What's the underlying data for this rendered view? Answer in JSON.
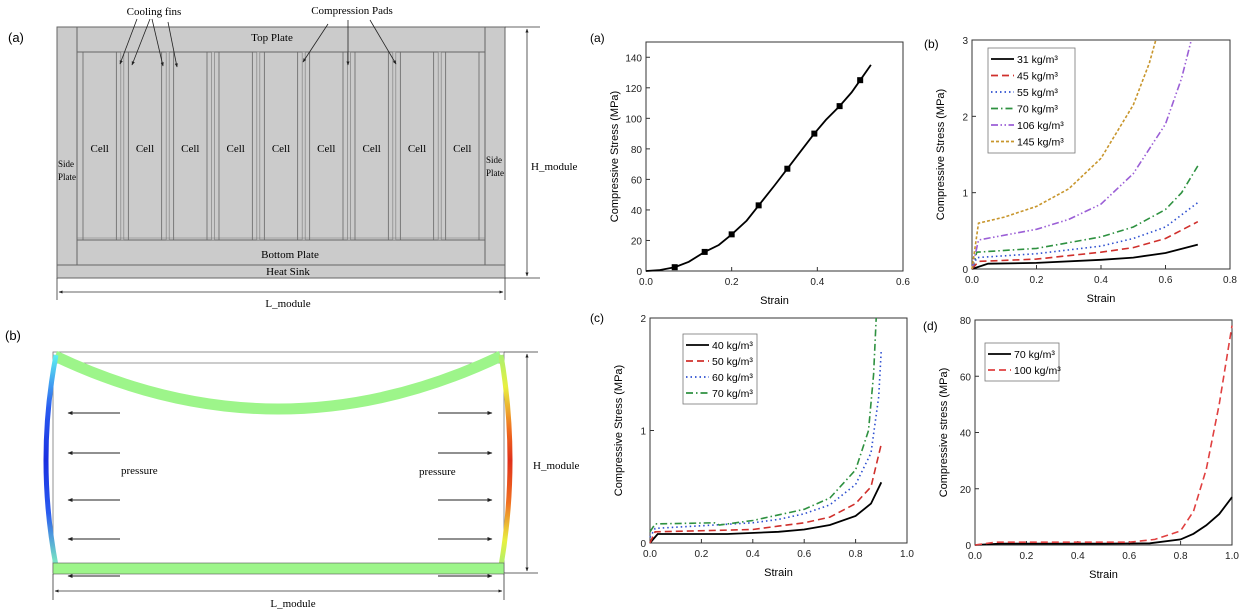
{
  "panel_labels": {
    "diagram_a": "(a)",
    "diagram_b": "(b)"
  },
  "diagram_a": {
    "cooling_fins": "Cooling fins",
    "compression_pads": "Compression Pads",
    "top_plate": "Top Plate",
    "bottom_plate": "Bottom Plate",
    "heat_sink": "Heat Sink",
    "side_plate": [
      "Side",
      "Plate"
    ],
    "cell": "Cell",
    "h_module": "H_module",
    "l_module": "L_module",
    "fill_color": "#cbcbcb"
  },
  "diagram_b": {
    "pressure_left": "pressure",
    "pressure_right": "pressure",
    "h_module": "H_module",
    "l_module": "L_module",
    "plate_color": "#9df58a",
    "left_plate_colors": [
      "#5ff0f0",
      "#1a2fe0",
      "#5ff0f0"
    ],
    "right_plate_colors": [
      "#e8f040",
      "#e0301a",
      "#e8f040"
    ]
  },
  "chart_data": [
    {
      "panel": "(a)",
      "type": "line",
      "xlabel": "Strain",
      "ylabel": "Compressive Stress (MPa)",
      "xlim": [
        0,
        0.6
      ],
      "ylim": [
        0,
        150
      ],
      "xticks": [
        "0.0",
        "0.2",
        "0.4",
        "0.6"
      ],
      "xtick_values": [
        0,
        0.2,
        0.4,
        0.6
      ],
      "yticks": [
        "0",
        "20",
        "40",
        "60",
        "80",
        "100",
        "120",
        "140"
      ],
      "ytick_values": [
        0,
        20,
        40,
        60,
        80,
        100,
        120,
        140
      ],
      "grid": false,
      "legend": null,
      "series": [
        {
          "color": "#000000",
          "style": "solid",
          "markers": true,
          "x": [
            0,
            0.03,
            0.067,
            0.1,
            0.137,
            0.17,
            0.2,
            0.235,
            0.263,
            0.3,
            0.33,
            0.36,
            0.393,
            0.42,
            0.452,
            0.48,
            0.5,
            0.525
          ],
          "y": [
            0,
            0.5,
            2.5,
            6,
            12.5,
            17,
            24,
            33,
            43,
            56,
            67,
            78,
            90,
            99,
            108,
            117,
            125,
            135
          ],
          "marker_x": [
            0.067,
            0.137,
            0.2,
            0.263,
            0.33,
            0.393,
            0.452,
            0.5
          ],
          "marker_y": [
            2.5,
            12.5,
            24,
            43,
            67,
            90,
            108,
            125
          ]
        }
      ]
    },
    {
      "panel": "(b)",
      "type": "line",
      "xlabel": "Strain",
      "ylabel": "Compressive Stress (MPa)",
      "xlim": [
        0,
        0.8
      ],
      "ylim": [
        0,
        3
      ],
      "xticks": [
        "0.0",
        "0.2",
        "0.4",
        "0.6",
        "0.8"
      ],
      "xtick_values": [
        0,
        0.2,
        0.4,
        0.6,
        0.8
      ],
      "yticks": [
        "0",
        "1",
        "2",
        "3"
      ],
      "ytick_values": [
        0,
        1,
        2,
        3
      ],
      "grid": false,
      "legend": "top-left",
      "series": [
        {
          "name": "31 kg/m³",
          "color": "#000000",
          "style": "solid",
          "x": [
            0,
            0.05,
            0.2,
            0.4,
            0.5,
            0.6,
            0.7
          ],
          "y": [
            0,
            0.07,
            0.08,
            0.12,
            0.15,
            0.21,
            0.32
          ]
        },
        {
          "name": "45 kg/m³",
          "color": "#d0302c",
          "style": "dash",
          "x": [
            0,
            0.02,
            0.2,
            0.4,
            0.5,
            0.6,
            0.7
          ],
          "y": [
            0,
            0.1,
            0.13,
            0.22,
            0.28,
            0.4,
            0.62
          ]
        },
        {
          "name": "55 kg/m³",
          "color": "#2d4fd0",
          "style": "dot",
          "x": [
            0,
            0.015,
            0.2,
            0.4,
            0.5,
            0.6,
            0.7
          ],
          "y": [
            0,
            0.15,
            0.2,
            0.3,
            0.4,
            0.55,
            0.87
          ]
        },
        {
          "name": "70 kg/m³",
          "color": "#2e9140",
          "style": "dashdot",
          "x": [
            0,
            0.015,
            0.2,
            0.4,
            0.5,
            0.6,
            0.65,
            0.7
          ],
          "y": [
            0,
            0.22,
            0.27,
            0.42,
            0.55,
            0.78,
            1.0,
            1.35
          ]
        },
        {
          "name": "106 kg/m³",
          "color": "#9b5fd6",
          "style": "dashdotdot",
          "x": [
            0,
            0.02,
            0.2,
            0.3,
            0.4,
            0.5,
            0.6,
            0.65,
            0.68
          ],
          "y": [
            0,
            0.38,
            0.52,
            0.65,
            0.85,
            1.25,
            1.9,
            2.5,
            3.0
          ]
        },
        {
          "name": "145 kg/m³",
          "color": "#c8962d",
          "style": "shortdash",
          "x": [
            0,
            0.02,
            0.1,
            0.2,
            0.3,
            0.4,
            0.5,
            0.55,
            0.57
          ],
          "y": [
            0,
            0.6,
            0.68,
            0.82,
            1.05,
            1.45,
            2.15,
            2.7,
            3.0
          ]
        }
      ]
    },
    {
      "panel": "(c)",
      "type": "line",
      "xlabel": "Strain",
      "ylabel": "Compressive Stress (MPa)",
      "xlim": [
        0,
        1.0
      ],
      "ylim": [
        0,
        2
      ],
      "xticks": [
        "0.0",
        "0.2",
        "0.4",
        "0.6",
        "0.8",
        "1.0"
      ],
      "xtick_values": [
        0,
        0.2,
        0.4,
        0.6,
        0.8,
        1.0
      ],
      "yticks": [
        "0",
        "1",
        "2"
      ],
      "ytick_values": [
        0,
        1,
        2
      ],
      "grid": false,
      "legend": "top-left",
      "series": [
        {
          "name": "40 kg/m³",
          "color": "#000000",
          "style": "solid",
          "x": [
            0,
            0.03,
            0.25,
            0.3,
            0.5,
            0.6,
            0.7,
            0.8,
            0.86,
            0.9
          ],
          "y": [
            0,
            0.08,
            0.08,
            0.08,
            0.1,
            0.12,
            0.16,
            0.24,
            0.35,
            0.54
          ]
        },
        {
          "name": "50 kg/m³",
          "color": "#d0302c",
          "style": "dash",
          "x": [
            0,
            0.02,
            0.4,
            0.5,
            0.6,
            0.7,
            0.8,
            0.86,
            0.9
          ],
          "y": [
            0,
            0.1,
            0.12,
            0.15,
            0.18,
            0.23,
            0.35,
            0.5,
            0.88
          ]
        },
        {
          "name": "60 kg/m³",
          "color": "#2d4fd0",
          "style": "dot",
          "x": [
            0,
            0.02,
            0.4,
            0.5,
            0.6,
            0.7,
            0.8,
            0.86,
            0.89,
            0.9
          ],
          "y": [
            0.05,
            0.13,
            0.18,
            0.21,
            0.26,
            0.34,
            0.52,
            0.8,
            1.3,
            1.72
          ]
        },
        {
          "name": "70 kg/m³",
          "color": "#2e9140",
          "style": "dashdot",
          "x": [
            0,
            0.02,
            0.25,
            0.27,
            0.4,
            0.6,
            0.7,
            0.8,
            0.85,
            0.87,
            0.88
          ],
          "y": [
            0.1,
            0.17,
            0.18,
            0.16,
            0.2,
            0.3,
            0.4,
            0.65,
            1.0,
            1.5,
            2.0
          ]
        }
      ]
    },
    {
      "panel": "(d)",
      "type": "line",
      "xlabel": "Strain",
      "ylabel": "Compressive stress (MPa)",
      "xlim": [
        0,
        1.0
      ],
      "ylim": [
        0,
        80
      ],
      "xticks": [
        "0.0",
        "0.2",
        "0.4",
        "0.6",
        "0.8",
        "1.0"
      ],
      "xtick_values": [
        0,
        0.2,
        0.4,
        0.6,
        0.8,
        1.0
      ],
      "yticks": [
        "0",
        "20",
        "40",
        "60",
        "80"
      ],
      "ytick_values": [
        0,
        20,
        40,
        60,
        80
      ],
      "grid": false,
      "legend": "top-left",
      "series": [
        {
          "name": "70 kg/m³",
          "color": "#000000",
          "style": "solid",
          "x": [
            0,
            0.1,
            0.5,
            0.68,
            0.8,
            0.85,
            0.9,
            0.95,
            1.0
          ],
          "y": [
            0,
            0.5,
            0.5,
            0.6,
            2,
            4,
            7,
            11,
            17
          ]
        },
        {
          "name": "100 kg/m³",
          "color": "#e04040",
          "style": "dash",
          "x": [
            0,
            0.08,
            0.6,
            0.7,
            0.8,
            0.85,
            0.9,
            0.95,
            1.0
          ],
          "y": [
            0,
            1,
            1,
            2,
            5,
            12,
            27,
            50,
            78
          ]
        }
      ]
    }
  ]
}
